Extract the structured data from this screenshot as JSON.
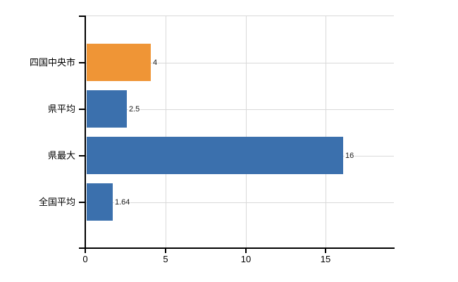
{
  "chart_data": {
    "type": "bar",
    "orientation": "horizontal",
    "title": "",
    "xlabel": "",
    "ylabel": "",
    "categories": [
      "四国中央市",
      "県平均",
      "県最大",
      "全国平均"
    ],
    "values": [
      4,
      2.5,
      16,
      1.64
    ],
    "value_labels": [
      "4",
      "2.5",
      "16",
      "1.64"
    ],
    "bar_colors": [
      "#ef9536",
      "#3b70ad",
      "#3b70ad",
      "#3b70ad"
    ],
    "xlim": [
      0,
      19.25
    ],
    "x_tick_values": [
      0,
      5,
      10,
      15
    ],
    "x_tick_labels": [
      "0",
      "5",
      "10",
      "15"
    ],
    "grid": true,
    "legend": false,
    "colors": {
      "highlight_bar": "#ef9536",
      "default_bar": "#3b70ad",
      "gridline": "#d9d9d9",
      "axis": "#000000",
      "background": "#ffffff",
      "value_label_text": "#1a1a1a",
      "axis_label_text": "#000000"
    }
  }
}
